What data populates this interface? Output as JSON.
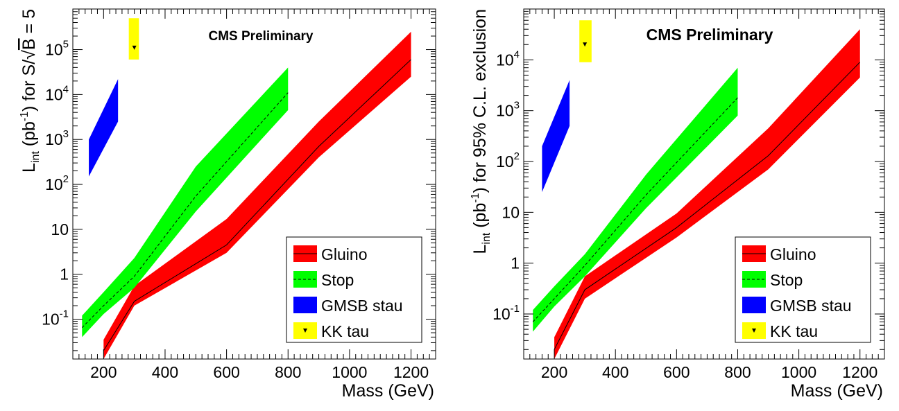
{
  "chart_data": [
    {
      "type": "area",
      "title": "",
      "annotation": "CMS Preliminary",
      "xlabel": "Mass (GeV)",
      "ylabel": "L_int (pb^-1) for S/√B = 5",
      "ylabel_parts": {
        "main": "L",
        "sub": "int",
        "mid": " (pb",
        "sup": "-1",
        "tail": ") for S/",
        "sqrt": "√",
        "overline": "B",
        "end": " = 5"
      },
      "xlim": [
        100,
        1280
      ],
      "ylim": [
        0.013,
        800000
      ],
      "yscale": "log",
      "x_ticks": [
        200,
        400,
        600,
        800,
        1000,
        1200
      ],
      "x_tick_labels": [
        "200",
        "400",
        "600",
        "800",
        "1000",
        "1200"
      ],
      "y_tick_labels": [
        {
          "value": 0.1,
          "base": "10",
          "exp": "-1"
        },
        {
          "value": 1,
          "base": "1",
          "exp": ""
        },
        {
          "value": 10,
          "base": "10",
          "exp": ""
        },
        {
          "value": 100,
          "base": "10",
          "exp": "2"
        },
        {
          "value": 1000,
          "base": "10",
          "exp": "3"
        },
        {
          "value": 10000,
          "base": "10",
          "exp": "4"
        },
        {
          "value": 100000,
          "base": "10",
          "exp": "5"
        }
      ],
      "legend_position": "bottom-right",
      "series": [
        {
          "name": "Gluino",
          "color": "#ff0000",
          "line": "solid",
          "x": [
            200,
            300,
            600,
            900,
            1200
          ],
          "central": [
            0.02,
            0.25,
            4.5,
            700,
            60000
          ],
          "low": [
            0.013,
            0.2,
            3.0,
            400,
            25000
          ],
          "high": [
            0.035,
            0.55,
            17,
            2500,
            250000
          ]
        },
        {
          "name": "Stop",
          "color": "#00ff00",
          "line": "dashed",
          "x": [
            130,
            200,
            300,
            500,
            800
          ],
          "central": [
            0.065,
            0.2,
            0.9,
            55,
            11000
          ],
          "low": [
            0.04,
            0.13,
            0.5,
            25,
            4500
          ],
          "high": [
            0.12,
            0.4,
            2.3,
            250,
            40000
          ]
        },
        {
          "name": "GMSB stau",
          "color": "#0000ff",
          "line": "none",
          "x": [
            152,
            247
          ],
          "low": [
            150,
            2500
          ],
          "high": [
            1000,
            22000
          ]
        },
        {
          "name": "KK tau",
          "color": "#ffff00",
          "line": "none",
          "marker": "triangle-down",
          "x": [
            282,
            315
          ],
          "low": [
            60000,
            60000
          ],
          "high": [
            500000,
            500000
          ],
          "point": {
            "x": 300,
            "y": 110000
          }
        }
      ]
    },
    {
      "type": "area",
      "title": "",
      "annotation": "CMS Preliminary",
      "xlabel": "Mass (GeV)",
      "ylabel": "L_int (pb^-1) for 95% C.L. exclusion",
      "ylabel_parts": {
        "main": "L",
        "sub": "int",
        "mid": " (pb",
        "sup": "-1",
        "tail": ") for 95% C.L. exclusion"
      },
      "xlim": [
        100,
        1280
      ],
      "ylim": [
        0.013,
        100000
      ],
      "yscale": "log",
      "x_ticks": [
        200,
        400,
        600,
        800,
        1000,
        1200
      ],
      "x_tick_labels": [
        "200",
        "400",
        "600",
        "800",
        "1000",
        "1200"
      ],
      "y_tick_labels": [
        {
          "value": 0.1,
          "base": "10",
          "exp": "-1"
        },
        {
          "value": 1,
          "base": "1",
          "exp": ""
        },
        {
          "value": 10,
          "base": "10",
          "exp": ""
        },
        {
          "value": 100,
          "base": "10",
          "exp": "2"
        },
        {
          "value": 1000,
          "base": "10",
          "exp": "3"
        },
        {
          "value": 10000,
          "base": "10",
          "exp": "4"
        }
      ],
      "legend_position": "bottom-right",
      "series": [
        {
          "name": "Gluino",
          "color": "#ff0000",
          "line": "solid",
          "x": [
            200,
            300,
            600,
            900,
            1200
          ],
          "central": [
            0.02,
            0.3,
            5,
            130,
            9000
          ],
          "low": [
            0.013,
            0.2,
            3.2,
            70,
            4500
          ],
          "high": [
            0.035,
            0.55,
            9.5,
            450,
            40000
          ]
        },
        {
          "name": "Stop",
          "color": "#00ff00",
          "line": "dashed",
          "x": [
            130,
            200,
            300,
            500,
            800
          ],
          "central": [
            0.07,
            0.2,
            0.9,
            22,
            1800
          ],
          "low": [
            0.045,
            0.14,
            0.55,
            12,
            800
          ],
          "high": [
            0.12,
            0.35,
            1.5,
            55,
            7000
          ]
        },
        {
          "name": "GMSB stau",
          "color": "#0000ff",
          "line": "none",
          "x": [
            160,
            250
          ],
          "low": [
            25,
            500
          ],
          "high": [
            200,
            4000
          ]
        },
        {
          "name": "KK tau",
          "color": "#ffff00",
          "line": "none",
          "marker": "triangle-down",
          "x": [
            282,
            322
          ],
          "low": [
            9000,
            9000
          ],
          "high": [
            60000,
            60000
          ],
          "point": {
            "x": 300,
            "y": 20000
          }
        }
      ]
    }
  ]
}
